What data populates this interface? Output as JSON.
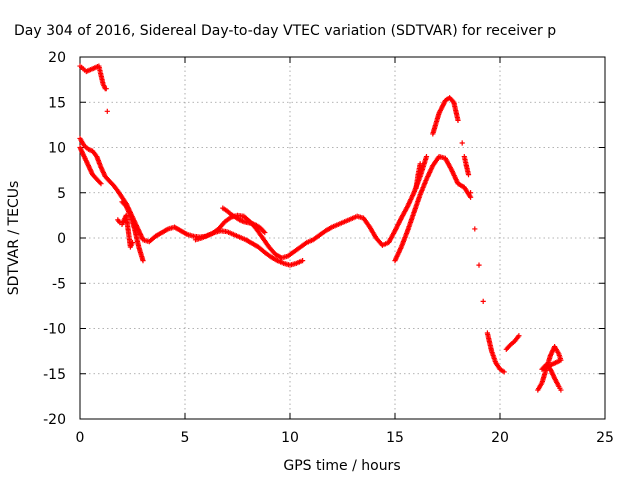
{
  "chart_data": {
    "type": "scatter",
    "title": "Day 304 of 2016, Sidereal Day-to-day VTEC variation (SDTVAR) for receiver p",
    "xlabel": "GPS time / hours",
    "ylabel": "SDTVAR / TECUs",
    "xlim": [
      0,
      25
    ],
    "ylim": [
      -20,
      20
    ],
    "xticks": [
      0,
      5,
      10,
      15,
      20,
      25
    ],
    "yticks": [
      -20,
      -15,
      -10,
      -5,
      0,
      5,
      10,
      15,
      20
    ],
    "grid": true,
    "marker": "plus",
    "color": "#ff0000",
    "series": [
      {
        "x": [
          0.0,
          0.2,
          0.4,
          0.6,
          0.8,
          1.0,
          1.2,
          1.4,
          1.6,
          1.8,
          2.0,
          2.2,
          2.4,
          2.6,
          2.8,
          3.0,
          3.3,
          3.6,
          3.9,
          4.2,
          4.5,
          4.8,
          5.1,
          5.4,
          5.7,
          6.0,
          6.3,
          6.6,
          6.9,
          7.2,
          7.5,
          7.8,
          8.1,
          8.4,
          8.7,
          9.0,
          9.3,
          9.6,
          9.9,
          10.2,
          10.5,
          10.8,
          11.1,
          11.4,
          11.7,
          12.0,
          12.3,
          12.6,
          12.9,
          13.2,
          13.5,
          13.8,
          14.1,
          14.4,
          14.7,
          15.0,
          15.3,
          15.6,
          15.9,
          16.2,
          16.5,
          16.8,
          17.1,
          17.4,
          17.6,
          17.8,
          18.0,
          18.2,
          18.4,
          18.6,
          18.8,
          19.0,
          19.2,
          19.4,
          19.6,
          19.8,
          20.0,
          20.2
        ],
        "y": [
          11.0,
          10.2,
          9.8,
          9.6,
          9.0,
          7.8,
          6.8,
          6.3,
          5.8,
          5.2,
          4.5,
          3.8,
          2.8,
          1.8,
          0.8,
          -0.2,
          -0.4,
          0.2,
          0.6,
          1.0,
          1.2,
          0.8,
          0.4,
          0.2,
          0.1,
          0.2,
          0.5,
          1.0,
          1.8,
          2.3,
          2.5,
          2.4,
          1.8,
          1.0,
          0.0,
          -1.0,
          -1.8,
          -2.2,
          -2.0,
          -1.5,
          -1.0,
          -0.5,
          -0.2,
          0.3,
          0.8,
          1.2,
          1.5,
          1.8,
          2.1,
          2.4,
          2.2,
          1.2,
          0.0,
          -0.8,
          -0.5,
          0.8,
          2.2,
          3.5,
          5.0,
          6.8,
          9.0,
          11.5,
          13.8,
          15.2,
          15.5,
          15.0,
          13.0,
          10.5,
          8.0,
          5.0,
          1.0,
          -3.0,
          -7.0,
          -10.5,
          -12.5,
          -13.8,
          -14.5,
          -14.8
        ]
      },
      {
        "x": [
          0.0,
          0.2,
          0.4,
          0.6,
          0.8,
          1.0,
          2.0,
          2.2,
          2.4,
          2.6,
          2.8,
          3.0,
          5.5,
          5.8,
          6.1,
          6.4,
          6.7,
          7.0,
          7.3,
          7.6,
          7.9,
          8.2,
          8.5,
          8.8,
          9.1,
          9.4,
          9.7,
          10.0,
          10.3,
          10.6,
          15.0,
          15.3,
          15.6,
          15.9,
          16.2,
          16.5,
          16.8,
          17.1,
          17.4,
          17.7,
          18.0,
          18.3,
          18.6
        ],
        "y": [
          10.0,
          9.0,
          8.0,
          7.0,
          6.5,
          6.0,
          4.0,
          3.5,
          2.5,
          1.0,
          -1.0,
          -2.5,
          -0.2,
          0.0,
          0.3,
          0.6,
          0.8,
          0.7,
          0.4,
          0.1,
          -0.2,
          -0.6,
          -1.0,
          -1.6,
          -2.1,
          -2.5,
          -2.8,
          -3.0,
          -2.8,
          -2.5,
          -2.5,
          -1.0,
          0.8,
          2.8,
          4.8,
          6.5,
          8.0,
          9.0,
          8.8,
          7.5,
          6.0,
          5.6,
          4.5
        ]
      },
      {
        "x": [
          0.0,
          0.15,
          0.3,
          0.9,
          1.0,
          1.1,
          1.2,
          1.25,
          1.3,
          1.8,
          1.9,
          2.0,
          2.1,
          2.2,
          2.3,
          2.4,
          2.5,
          6.8,
          7.0,
          7.2,
          7.4,
          7.6,
          7.8,
          8.0,
          8.2,
          8.4,
          8.6,
          8.8,
          16.0,
          16.1,
          16.2,
          18.3,
          18.4,
          18.5
        ],
        "y": [
          19.0,
          18.7,
          18.4,
          19.0,
          18.0,
          17.0,
          16.5,
          16.5,
          14.0,
          2.0,
          1.7,
          1.5,
          2.0,
          2.5,
          0.8,
          -1.0,
          -0.5,
          3.3,
          3.0,
          2.6,
          2.3,
          2.0,
          1.8,
          1.7,
          1.6,
          1.4,
          1.1,
          0.6,
          5.5,
          7.0,
          8.2,
          9.0,
          8.0,
          7.0
        ]
      },
      {
        "x": [
          20.3,
          20.5,
          20.7,
          20.9,
          21.8,
          22.0,
          22.2,
          22.4,
          22.6,
          22.8,
          22.9,
          22.0,
          22.2,
          22.4,
          22.6,
          22.8,
          22.9
        ],
        "y": [
          -12.3,
          -11.8,
          -11.4,
          -10.8,
          -16.8,
          -16.0,
          -14.5,
          -13.0,
          -12.0,
          -12.8,
          -13.5,
          -14.5,
          -14.0,
          -14.5,
          -15.5,
          -16.4,
          -16.8
        ]
      }
    ]
  }
}
